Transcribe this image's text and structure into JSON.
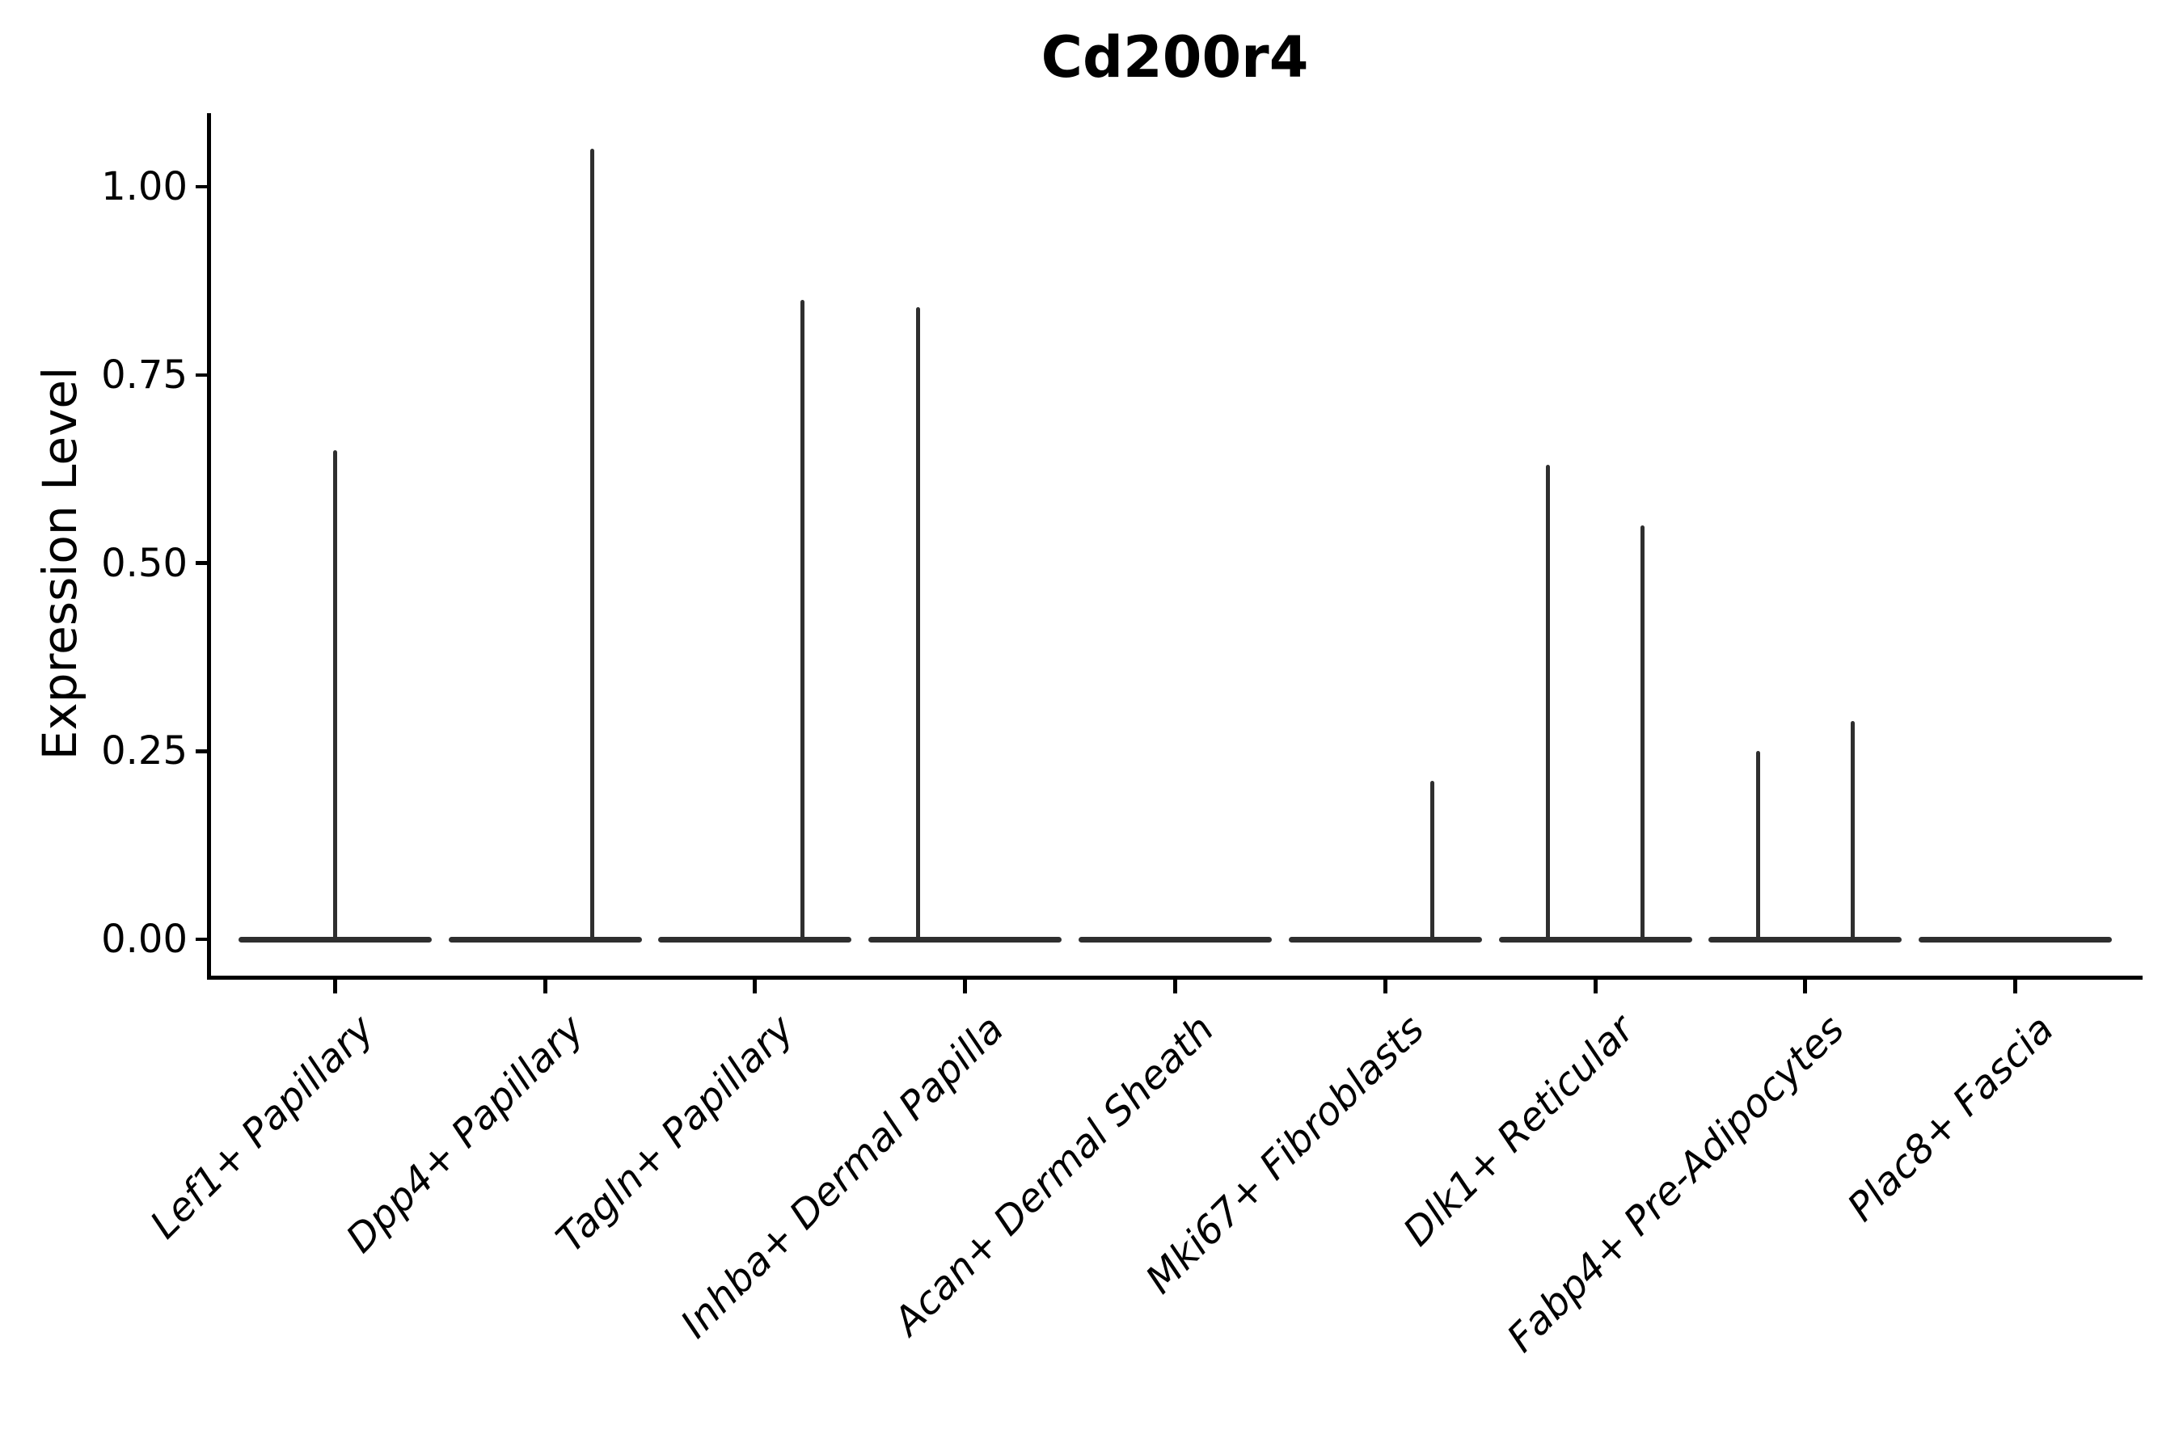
{
  "chart_data": {
    "type": "violin",
    "title": "Cd200r4",
    "xlabel": "",
    "ylabel": "Expression Level",
    "ylim": [
      -0.05,
      1.1
    ],
    "grid": false,
    "legend": "none",
    "yticks": [
      1.0,
      0.75,
      0.5,
      0.25,
      0.0
    ],
    "ytick_labels": [
      "1.00",
      "0.75",
      "0.50",
      "0.25",
      "0.00"
    ],
    "categories": [
      "Lef1+ Papillary",
      "Dpp4+ Papillary",
      "Tagln+ Papillary",
      "Inhba+ Dermal Papilla",
      "Acan+ Dermal Sheath",
      "Mki67+ Fibroblasts",
      "Dlk1+ Reticular",
      "Fabp4+ Pre-Adipocytes",
      "Plac8+ Fascia"
    ],
    "series": [
      {
        "category": "Lef1+ Papillary",
        "baseline_value": 0.0,
        "spikes": [
          {
            "max_value": 0.65,
            "position": "center"
          }
        ]
      },
      {
        "category": "Dpp4+ Papillary",
        "baseline_value": 0.0,
        "spikes": [
          {
            "max_value": 1.05,
            "position": "right"
          }
        ]
      },
      {
        "category": "Tagln+ Papillary",
        "baseline_value": 0.0,
        "spikes": [
          {
            "max_value": 0.85,
            "position": "right"
          }
        ]
      },
      {
        "category": "Inhba+ Dermal Papilla",
        "baseline_value": 0.0,
        "spikes": [
          {
            "max_value": 0.84,
            "position": "left"
          }
        ]
      },
      {
        "category": "Acan+ Dermal Sheath",
        "baseline_value": 0.0,
        "spikes": []
      },
      {
        "category": "Mki67+ Fibroblasts",
        "baseline_value": 0.0,
        "spikes": [
          {
            "max_value": 0.21,
            "position": "right"
          }
        ]
      },
      {
        "category": "Dlk1+ Reticular",
        "baseline_value": 0.0,
        "spikes": [
          {
            "max_value": 0.63,
            "position": "left"
          },
          {
            "max_value": 0.55,
            "position": "right"
          }
        ]
      },
      {
        "category": "Fabp4+ Pre-Adipocytes",
        "baseline_value": 0.0,
        "spikes": [
          {
            "max_value": 0.25,
            "position": "left"
          },
          {
            "max_value": 0.29,
            "position": "right"
          }
        ]
      },
      {
        "category": "Plac8+ Fascia",
        "baseline_value": 0.0,
        "spikes": []
      }
    ],
    "style": {
      "violin_color": "#2f2f2f",
      "axis_color": "#000000",
      "background_color": "#ffffff",
      "x_tick_label_style": "italic",
      "x_tick_label_rotation_deg": 45
    }
  }
}
